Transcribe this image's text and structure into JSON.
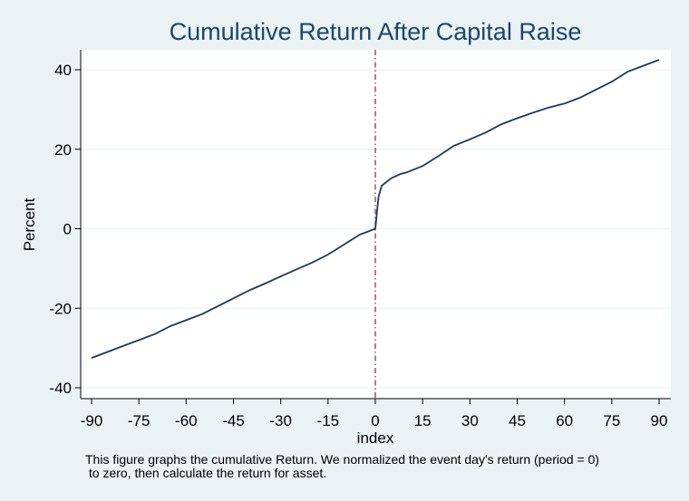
{
  "chart_data": {
    "type": "line",
    "title": "Cumulative Return After Capital Raise",
    "xlabel": "index",
    "ylabel": "Percent",
    "xlim": [
      -90,
      90
    ],
    "ylim": [
      -40,
      40
    ],
    "xticks": [
      -90,
      -75,
      -60,
      -45,
      -30,
      -15,
      0,
      15,
      30,
      45,
      60,
      75,
      90
    ],
    "yticks": [
      -40,
      -20,
      0,
      20,
      40
    ],
    "grid": true,
    "event_line_x": 0,
    "note_lines": [
      "This figure graphs the cumulative Return. We normalized the event day's return (period = 0)",
      " to zero, then calculate the return for asset."
    ],
    "series": [
      {
        "color": "#1a3a5a",
        "x": [
          -90,
          -85,
          -80,
          -75,
          -70,
          -65,
          -60,
          -55,
          -50,
          -45,
          -40,
          -35,
          -30,
          -25,
          -20,
          -15,
          -10,
          -5,
          -1,
          0,
          1,
          2,
          5,
          8,
          10,
          15,
          20,
          25,
          30,
          35,
          40,
          45,
          50,
          55,
          60,
          65,
          70,
          75,
          80,
          85,
          90
        ],
        "values": [
          -32.5,
          -31.0,
          -29.5,
          -28.0,
          -26.5,
          -24.5,
          -23.0,
          -21.5,
          -19.5,
          -17.5,
          -15.5,
          -13.8,
          -12.0,
          -10.2,
          -8.5,
          -6.5,
          -4.0,
          -1.5,
          -0.3,
          0.0,
          8.0,
          10.8,
          12.7,
          13.8,
          14.2,
          15.8,
          18.3,
          20.9,
          22.5,
          24.2,
          26.3,
          27.8,
          29.2,
          30.5,
          31.5,
          33.0,
          35.0,
          37.0,
          39.5,
          41.0,
          42.5
        ]
      }
    ],
    "colors": {
      "background": "#eaf2f3",
      "plot_background": "#ffffff",
      "title": "#1a476f",
      "grid": "#eaf2f3",
      "event_line": "#90353b"
    }
  }
}
